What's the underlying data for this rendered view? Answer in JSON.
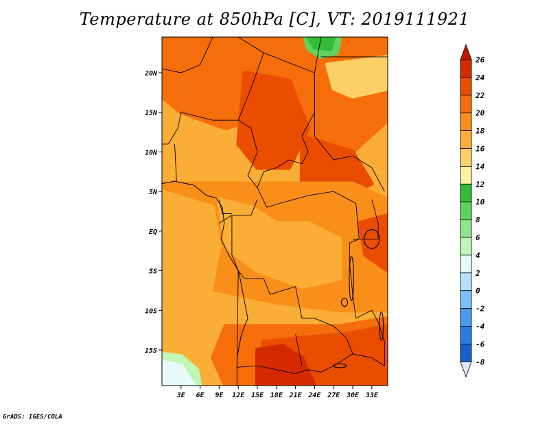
{
  "title": "Temperature at 850hPa [C], VT: 2019111921",
  "credit": "GrADS: IGES/COLA",
  "map": {
    "lat_range": [
      -19.5,
      24.5
    ],
    "lon_range": [
      0,
      35.5
    ],
    "lat_ticks": [
      {
        "value": 20,
        "label": "20N"
      },
      {
        "value": 15,
        "label": "15N"
      },
      {
        "value": 10,
        "label": "10N"
      },
      {
        "value": 5,
        "label": "5N"
      },
      {
        "value": 0,
        "label": "EQ"
      },
      {
        "value": -5,
        "label": "5S"
      },
      {
        "value": -10,
        "label": "10S"
      },
      {
        "value": -15,
        "label": "15S"
      }
    ],
    "lon_ticks": [
      {
        "value": 3,
        "label": "3E"
      },
      {
        "value": 6,
        "label": "6E"
      },
      {
        "value": 9,
        "label": "9E"
      },
      {
        "value": 12,
        "label": "12E"
      },
      {
        "value": 15,
        "label": "15E"
      },
      {
        "value": 18,
        "label": "18E"
      },
      {
        "value": 21,
        "label": "21E"
      },
      {
        "value": 24,
        "label": "24E"
      },
      {
        "value": 27,
        "label": "27E"
      },
      {
        "value": 30,
        "label": "30E"
      },
      {
        "value": 33,
        "label": "33E"
      }
    ]
  },
  "colorbar": {
    "levels": [
      26,
      24,
      22,
      20,
      18,
      16,
      14,
      12,
      10,
      8,
      6,
      4,
      2,
      0,
      -2,
      -4,
      -6,
      -8
    ],
    "colors": [
      "#d52a00",
      "#ea4c00",
      "#f56e09",
      "#f98f18",
      "#fbae35",
      "#fdd066",
      "#fef0a0",
      "#33bc36",
      "#5ed35f",
      "#8ee58d",
      "#c0f6b6",
      "#e6fbf9",
      "#b7e1fd",
      "#7dc0f7",
      "#4a9bef",
      "#2b7be2",
      "#1a5fd0",
      "#0f3db0",
      "#0a1a80"
    ],
    "top_color": "#c01800",
    "bottom_color": "#dfe6fb"
  },
  "regions": [
    {
      "name": "north-africa-warm",
      "color": "#f56e09",
      "points": [
        [
          0,
          24.5
        ],
        [
          35.5,
          24.5
        ],
        [
          35.5,
          14
        ],
        [
          30,
          10
        ],
        [
          22,
          12
        ],
        [
          18,
          15
        ],
        [
          10,
          13
        ],
        [
          3,
          15
        ],
        [
          0,
          17
        ]
      ]
    },
    {
      "name": "sahel-hot-core",
      "color": "#ea4c00",
      "points": [
        [
          13,
          20
        ],
        [
          20,
          19
        ],
        [
          23,
          13
        ],
        [
          20,
          8
        ],
        [
          15,
          8
        ],
        [
          12,
          11
        ]
      ]
    },
    {
      "name": "sudan-warm",
      "color": "#ea4c00",
      "points": [
        [
          22,
          12
        ],
        [
          30,
          10
        ],
        [
          33,
          6
        ],
        [
          28,
          4
        ],
        [
          22,
          6
        ]
      ]
    },
    {
      "name": "central-africa",
      "color": "#f98f18",
      "points": [
        [
          0,
          6
        ],
        [
          12,
          6
        ],
        [
          20,
          6
        ],
        [
          30,
          6
        ],
        [
          35.5,
          4
        ],
        [
          35.5,
          -10
        ],
        [
          28,
          -10
        ],
        [
          18,
          -9
        ],
        [
          12,
          -8
        ],
        [
          0,
          -6
        ]
      ]
    },
    {
      "name": "congo-basin-mild",
      "color": "#fbae35",
      "points": [
        [
          9,
          4
        ],
        [
          14,
          3
        ],
        [
          18,
          1
        ],
        [
          23,
          1
        ],
        [
          28,
          -1
        ],
        [
          28,
          -6
        ],
        [
          22,
          -7
        ],
        [
          15,
          -5
        ],
        [
          10,
          -2
        ]
      ]
    },
    {
      "name": "atlantic-mild",
      "color": "#fbae35",
      "points": [
        [
          0,
          5
        ],
        [
          8,
          3
        ],
        [
          9,
          -2
        ],
        [
          7,
          -10
        ],
        [
          0,
          -12
        ]
      ]
    },
    {
      "name": "northeast-mild",
      "color": "#fdd066",
      "points": [
        [
          26,
          21
        ],
        [
          35.5,
          22
        ],
        [
          35.5,
          18
        ],
        [
          30,
          17
        ],
        [
          27,
          18
        ]
      ]
    },
    {
      "name": "southern-warm",
      "color": "#f56e09",
      "points": [
        [
          10,
          -12
        ],
        [
          22,
          -12
        ],
        [
          28,
          -12
        ],
        [
          35.5,
          -11
        ],
        [
          35.5,
          -19.5
        ],
        [
          10,
          -19.5
        ],
        [
          8,
          -16
        ]
      ]
    },
    {
      "name": "zambezi-hot",
      "color": "#ea4c00",
      "points": [
        [
          16,
          -14
        ],
        [
          22,
          -13.5
        ],
        [
          29,
          -13
        ],
        [
          35.5,
          -12
        ],
        [
          35.5,
          -19.5
        ],
        [
          16,
          -19.5
        ]
      ]
    },
    {
      "name": "kalahari-hottest",
      "color": "#d52a00",
      "points": [
        [
          15,
          -15
        ],
        [
          19,
          -14.5
        ],
        [
          22,
          -16
        ],
        [
          24,
          -19.5
        ],
        [
          15,
          -19.5
        ]
      ]
    },
    {
      "name": "lake-region-hot",
      "color": "#ea4c00",
      "points": [
        [
          31,
          1
        ],
        [
          35.5,
          2
        ],
        [
          35.5,
          -5
        ],
        [
          32,
          -3
        ]
      ]
    },
    {
      "name": "southwest-cool-water",
      "color": "#c0f6b6",
      "points": [
        [
          0,
          -15.5
        ],
        [
          3,
          -15.8
        ],
        [
          5.5,
          -17.5
        ],
        [
          6,
          -19.5
        ],
        [
          0,
          -19.5
        ]
      ]
    },
    {
      "name": "southwest-cold-water",
      "color": "#e6fbf9",
      "points": [
        [
          0,
          -16.5
        ],
        [
          3,
          -17
        ],
        [
          5,
          -19.5
        ],
        [
          0,
          -19.5
        ]
      ]
    },
    {
      "name": "north-cool-patch",
      "color": "#5ed35f",
      "points": [
        [
          22.5,
          24.5
        ],
        [
          28,
          24.5
        ],
        [
          27.5,
          22.5
        ],
        [
          25,
          22
        ],
        [
          23,
          23
        ]
      ]
    },
    {
      "name": "north-cool-patch-inner",
      "color": "#33bc36",
      "points": [
        [
          23,
          24.5
        ],
        [
          27,
          24.5
        ],
        [
          26.5,
          23
        ],
        [
          24,
          23.2
        ]
      ]
    }
  ],
  "boundaries": [
    [
      [
        0,
        20.5
      ],
      [
        3,
        20
      ],
      [
        6,
        21
      ],
      [
        8,
        24.5
      ]
    ],
    [
      [
        12,
        24.5
      ],
      [
        16,
        22.5
      ],
      [
        14,
        18
      ],
      [
        12,
        14
      ],
      [
        8,
        14
      ],
      [
        3,
        15
      ],
      [
        2.5,
        13
      ],
      [
        1,
        11
      ],
      [
        0,
        11
      ]
    ],
    [
      [
        12,
        14
      ],
      [
        14,
        13
      ],
      [
        15,
        10
      ],
      [
        13.5,
        7
      ],
      [
        15,
        5.5
      ]
    ],
    [
      [
        16,
        22.5
      ],
      [
        24,
        20
      ],
      [
        24,
        15
      ],
      [
        22,
        12
      ],
      [
        23,
        10
      ],
      [
        22,
        8.5
      ],
      [
        20,
        9
      ],
      [
        18,
        8
      ],
      [
        16,
        7.5
      ],
      [
        15,
        5.5
      ]
    ],
    [
      [
        24,
        20
      ],
      [
        25,
        24.5
      ]
    ],
    [
      [
        25,
        22
      ],
      [
        35.5,
        22
      ]
    ],
    [
      [
        24,
        15
      ],
      [
        24,
        12
      ],
      [
        27,
        9
      ],
      [
        30,
        9.5
      ],
      [
        33,
        8
      ],
      [
        35,
        5
      ]
    ],
    [
      [
        15,
        5.5
      ],
      [
        16.5,
        3
      ],
      [
        18.5,
        3.5
      ],
      [
        23,
        4.5
      ],
      [
        27,
        5
      ],
      [
        30.5,
        3.5
      ]
    ],
    [
      [
        9,
        1
      ],
      [
        11,
        2
      ],
      [
        14,
        2
      ],
      [
        15,
        4
      ]
    ],
    [
      [
        11,
        2
      ],
      [
        11,
        -3
      ],
      [
        12,
        -5
      ]
    ],
    [
      [
        12,
        -5
      ],
      [
        13,
        -6
      ],
      [
        16,
        -6
      ],
      [
        17,
        -8
      ],
      [
        21,
        -7
      ],
      [
        22,
        -11
      ],
      [
        24,
        -11
      ],
      [
        27,
        -12
      ],
      [
        29,
        -13.5
      ],
      [
        30,
        -15.5
      ],
      [
        33,
        -16
      ],
      [
        35,
        -17
      ]
    ],
    [
      [
        12,
        -5
      ],
      [
        11.8,
        -17.2
      ],
      [
        15,
        -17
      ],
      [
        18,
        -17.5
      ],
      [
        21,
        -18
      ],
      [
        23,
        -17.5
      ],
      [
        25,
        -17.8
      ],
      [
        27,
        -17
      ],
      [
        29,
        -16
      ],
      [
        30,
        -15.5
      ]
    ],
    [
      [
        21,
        -13
      ],
      [
        22,
        -17
      ]
    ],
    [
      [
        30.5,
        3.5
      ],
      [
        31,
        -1
      ],
      [
        29.5,
        -1.5
      ],
      [
        29.5,
        -4
      ],
      [
        30,
        -8
      ],
      [
        30.5,
        -11
      ]
    ],
    [
      [
        33,
        4
      ],
      [
        34,
        1
      ],
      [
        34,
        -1
      ],
      [
        30,
        -1
      ]
    ],
    [
      [
        30.5,
        -11
      ],
      [
        33,
        -10
      ],
      [
        34,
        -11.5
      ],
      [
        35,
        -14
      ],
      [
        35,
        -17
      ]
    ],
    [
      [
        2,
        11
      ],
      [
        2.3,
        6.3
      ]
    ],
    [
      [
        9,
        4
      ],
      [
        9.5,
        2.2
      ],
      [
        11,
        2.2
      ]
    ]
  ],
  "coastline": [
    [
      0,
      6
    ],
    [
      2,
      6.3
    ],
    [
      5,
      5.8
    ],
    [
      7,
      4.5
    ],
    [
      8.5,
      4.2
    ],
    [
      9.5,
      3
    ],
    [
      9.8,
      1
    ],
    [
      9.3,
      -1
    ],
    [
      10.5,
      -3
    ],
    [
      12,
      -5
    ],
    [
      12.3,
      -6
    ],
    [
      13,
      -9
    ],
    [
      13.5,
      -11
    ],
    [
      12.5,
      -13
    ],
    [
      11.8,
      -16
    ],
    [
      11.8,
      -19.5
    ]
  ],
  "lakes": [
    {
      "name": "lake-victoria",
      "cx": 33,
      "cy": -1,
      "rx": 1.2,
      "ry": 1.2
    },
    {
      "name": "lake-tanganyika",
      "cx": 29.8,
      "cy": -6,
      "rx": 0.35,
      "ry": 2.8
    },
    {
      "name": "lake-malawi",
      "cx": 34.5,
      "cy": -12,
      "rx": 0.3,
      "ry": 1.8
    },
    {
      "name": "lake-mweru",
      "cx": 28.7,
      "cy": -9,
      "rx": 0.5,
      "ry": 0.5
    },
    {
      "name": "lake-kariba",
      "cx": 28,
      "cy": -17,
      "rx": 1,
      "ry": 0.25
    }
  ]
}
